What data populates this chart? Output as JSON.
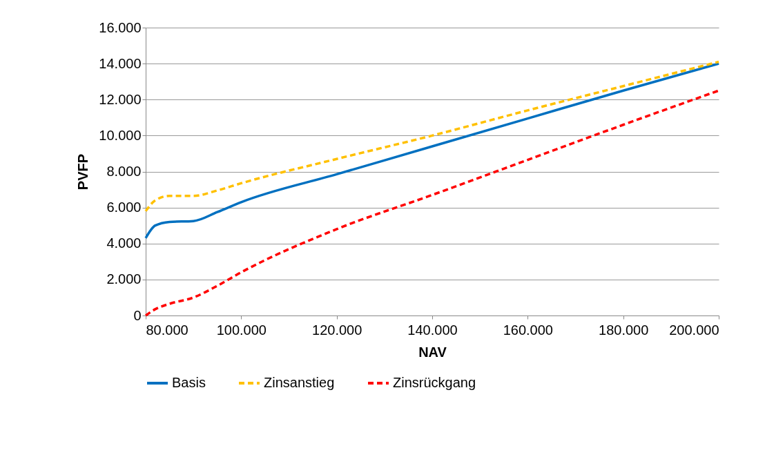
{
  "chart_data": {
    "type": "line",
    "xlabel": "NAV",
    "ylabel": "PVFP",
    "x": [
      80000,
      82000,
      85000,
      90000,
      95000,
      100000,
      120000,
      140000,
      160000,
      180000,
      200000
    ],
    "series": [
      {
        "name": "Basis",
        "color": "#0070c0",
        "line_style": "solid",
        "values": [
          4300,
          5000,
          5200,
          5250,
          5750,
          6300,
          7850,
          9400,
          10950,
          12500,
          14000
        ]
      },
      {
        "name": "Zinsanstieg",
        "color": "#ffc000",
        "line_style": "dashed",
        "values": [
          5800,
          6400,
          6650,
          6650,
          6950,
          7350,
          8700,
          10000,
          11400,
          12750,
          14100
        ]
      },
      {
        "name": "Zinsrückgang",
        "color": "#ff0000",
        "line_style": "dashed",
        "values": [
          0,
          350,
          650,
          1000,
          1650,
          2400,
          4800,
          6700,
          8650,
          10600,
          12500
        ]
      }
    ],
    "xlim": [
      80000,
      200000
    ],
    "xticks": [
      {
        "value": 80000,
        "label": "80.000"
      },
      {
        "value": 100000,
        "label": "100.000"
      },
      {
        "value": 120000,
        "label": "120.000"
      },
      {
        "value": 140000,
        "label": "140.000"
      },
      {
        "value": 160000,
        "label": "160.000"
      },
      {
        "value": 180000,
        "label": "180.000"
      },
      {
        "value": 200000,
        "label": "200.000"
      }
    ],
    "ylim": [
      0,
      16000
    ],
    "yticks": [
      0,
      {
        "value": 2000,
        "label": "2.000"
      },
      {
        "value": 4000,
        "label": "4.000"
      },
      {
        "value": 6000,
        "label": "6.000"
      },
      {
        "value": 8000,
        "label": "8.000"
      },
      {
        "value": 10000,
        "label": "10.000"
      },
      {
        "value": 12000,
        "label": "12.000"
      },
      {
        "value": 14000,
        "label": "14.000"
      },
      {
        "value": 16000,
        "label": "16.000"
      }
    ],
    "grid": "y",
    "legend": "bottom"
  }
}
